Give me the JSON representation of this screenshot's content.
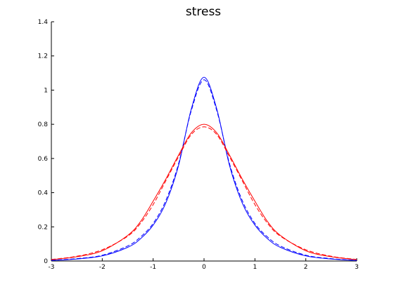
{
  "chart_data": {
    "type": "line",
    "title": "stress",
    "xlabel": "",
    "ylabel": "",
    "xlim": [
      -3,
      3
    ],
    "ylim": [
      0,
      1.4
    ],
    "x_ticks": [
      "-3",
      "-2",
      "-1",
      "0",
      "1",
      "2",
      "3"
    ],
    "y_ticks": [
      "0",
      "0.2",
      "0.4",
      "0.6",
      "0.8",
      "1",
      "1.2",
      "1.4"
    ],
    "grid": false,
    "legend": "none",
    "series": [
      {
        "color": "#0000ff",
        "style": "solid",
        "x": [
          -3,
          -2.5,
          -2,
          -1.5,
          -1.25,
          -1,
          -0.75,
          -0.5,
          -0.25,
          0,
          0.25,
          0.5,
          0.75,
          1,
          1.25,
          1.5,
          2,
          2.5,
          3
        ],
        "y": [
          0.003,
          0.012,
          0.03,
          0.08,
          0.13,
          0.21,
          0.34,
          0.56,
          0.89,
          1.075,
          0.89,
          0.56,
          0.34,
          0.21,
          0.13,
          0.08,
          0.03,
          0.012,
          0.003
        ]
      },
      {
        "color": "#0000ff",
        "style": "dashed",
        "x": [
          -3,
          -2.5,
          -2,
          -1.5,
          -1.25,
          -1,
          -0.75,
          -0.5,
          -0.25,
          0,
          0.25,
          0.5,
          0.75,
          1,
          1.25,
          1.5,
          2,
          2.5,
          3
        ],
        "y": [
          0.004,
          0.014,
          0.034,
          0.088,
          0.14,
          0.22,
          0.355,
          0.57,
          0.88,
          1.06,
          0.88,
          0.57,
          0.355,
          0.22,
          0.14,
          0.088,
          0.034,
          0.014,
          0.004
        ]
      },
      {
        "color": "#ff0000",
        "style": "solid",
        "x": [
          -3,
          -2.5,
          -2,
          -1.5,
          -1.25,
          -1,
          -0.75,
          -0.5,
          -0.25,
          0,
          0.25,
          0.5,
          0.75,
          1,
          1.25,
          1.5,
          2,
          2.5,
          3
        ],
        "y": [
          0.008,
          0.025,
          0.06,
          0.15,
          0.23,
          0.35,
          0.48,
          0.62,
          0.75,
          0.8,
          0.75,
          0.62,
          0.48,
          0.35,
          0.23,
          0.15,
          0.06,
          0.025,
          0.008
        ]
      },
      {
        "color": "#ff0000",
        "style": "dashed",
        "x": [
          -3,
          -2.5,
          -2,
          -1.5,
          -1.25,
          -1,
          -0.75,
          -0.5,
          -0.25,
          0,
          0.25,
          0.5,
          0.75,
          1,
          1.25,
          1.5,
          2,
          2.5,
          3
        ],
        "y": [
          0.009,
          0.028,
          0.066,
          0.145,
          0.22,
          0.33,
          0.47,
          0.61,
          0.74,
          0.785,
          0.74,
          0.61,
          0.47,
          0.33,
          0.22,
          0.145,
          0.066,
          0.028,
          0.009
        ]
      }
    ]
  }
}
